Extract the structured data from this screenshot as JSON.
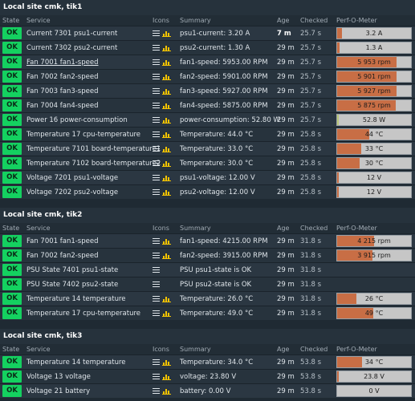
{
  "headers": {
    "state": "State",
    "service": "Service",
    "icons": "Icons",
    "summary": "Summary",
    "age": "Age",
    "checked": "Checked",
    "perf": "Perf-O-Meter"
  },
  "sites": [
    {
      "title": "Local site cmk, tik1",
      "rows": [
        {
          "state": "OK",
          "service": "Current 7301 psu1-current",
          "graph": true,
          "summary": "psu1-current: 3.20 A",
          "age": "7 m",
          "age_bold": true,
          "checked": "25.7 s",
          "perf_label": "3.2 A",
          "perf_fill": 0.06
        },
        {
          "state": "OK",
          "service": "Current 7302 psu2-current",
          "graph": true,
          "summary": "psu2-current: 1.30 A",
          "age": "29 m",
          "checked": "25.7 s",
          "perf_label": "1.3 A",
          "perf_fill": 0.03
        },
        {
          "state": "OK",
          "service": "Fan 7001 fan1-speed",
          "link": true,
          "graph": true,
          "summary": "fan1-speed: 5953.00 RPM",
          "age": "29 m",
          "checked": "25.7 s",
          "perf_label": "5 953 rpm",
          "perf_fill": 0.8
        },
        {
          "state": "OK",
          "service": "Fan 7002 fan2-speed",
          "graph": true,
          "summary": "fan2-speed: 5901.00 RPM",
          "age": "29 m",
          "checked": "25.7 s",
          "perf_label": "5 901 rpm",
          "perf_fill": 0.8
        },
        {
          "state": "OK",
          "service": "Fan 7003 fan3-speed",
          "graph": true,
          "summary": "fan3-speed: 5927.00 RPM",
          "age": "29 m",
          "checked": "25.7 s",
          "perf_label": "5 927 rpm",
          "perf_fill": 0.8
        },
        {
          "state": "OK",
          "service": "Fan 7004 fan4-speed",
          "graph": true,
          "summary": "fan4-speed: 5875.00 RPM",
          "age": "29 m",
          "checked": "25.7 s",
          "perf_label": "5 875 rpm",
          "perf_fill": 0.79
        },
        {
          "state": "OK",
          "service": "Power 16 power-consumption",
          "graph": true,
          "summary": "power-consumption: 52.80 W",
          "age": "29 m",
          "checked": "25.7 s",
          "perf_label": "52.8 W",
          "perf_fill": 0.02,
          "perf_green": true
        },
        {
          "state": "OK",
          "service": "Temperature 17 cpu-temperature",
          "graph": true,
          "summary": "Temperature: 44.0 °C",
          "age": "29 m",
          "checked": "25.8 s",
          "perf_label": "44 °C",
          "perf_fill": 0.44
        },
        {
          "state": "OK",
          "service": "Temperature 7101 board-temperature1",
          "graph": true,
          "summary": "Temperature: 33.0 °C",
          "age": "29 m",
          "checked": "25.8 s",
          "perf_label": "33 °C",
          "perf_fill": 0.33
        },
        {
          "state": "OK",
          "service": "Temperature 7102 board-temperature2",
          "graph": true,
          "summary": "Temperature: 30.0 °C",
          "age": "29 m",
          "checked": "25.8 s",
          "perf_label": "30 °C",
          "perf_fill": 0.3
        },
        {
          "state": "OK",
          "service": "Voltage 7201 psu1-voltage",
          "graph": true,
          "summary": "psu1-voltage: 12.00 V",
          "age": "29 m",
          "checked": "25.8 s",
          "perf_label": "12 V",
          "perf_fill": 0.02
        },
        {
          "state": "OK",
          "service": "Voltage 7202 psu2-voltage",
          "graph": true,
          "summary": "psu2-voltage: 12.00 V",
          "age": "29 m",
          "checked": "25.8 s",
          "perf_label": "12 V",
          "perf_fill": 0.02
        }
      ]
    },
    {
      "title": "Local site cmk, tik2",
      "rows": [
        {
          "state": "OK",
          "service": "Fan 7001 fan1-speed",
          "graph": true,
          "summary": "fan1-speed: 4215.00 RPM",
          "age": "29 m",
          "checked": "31.8 s",
          "perf_label": "4 215 rpm",
          "perf_fill": 0.5
        },
        {
          "state": "OK",
          "service": "Fan 7002 fan2-speed",
          "graph": true,
          "summary": "fan2-speed: 3915.00 RPM",
          "age": "29 m",
          "checked": "31.8 s",
          "perf_label": "3 915 rpm",
          "perf_fill": 0.48
        },
        {
          "state": "OK",
          "service": "PSU State 7401 psu1-state",
          "graph": false,
          "summary": "PSU psu1-state is OK",
          "age": "29 m",
          "checked": "31.8 s"
        },
        {
          "state": "OK",
          "service": "PSU State 7402 psu2-state",
          "graph": false,
          "summary": "PSU psu2-state is OK",
          "age": "29 m",
          "checked": "31.8 s"
        },
        {
          "state": "OK",
          "service": "Temperature 14 temperature",
          "graph": true,
          "summary": "Temperature: 26.0 °C",
          "age": "29 m",
          "checked": "31.8 s",
          "perf_label": "26 °C",
          "perf_fill": 0.26
        },
        {
          "state": "OK",
          "service": "Temperature 17 cpu-temperature",
          "graph": true,
          "summary": "Temperature: 49.0 °C",
          "age": "29 m",
          "checked": "31.8 s",
          "perf_label": "49 °C",
          "perf_fill": 0.49
        }
      ]
    },
    {
      "title": "Local site cmk, tik3",
      "rows": [
        {
          "state": "OK",
          "service": "Temperature 14 temperature",
          "graph": true,
          "summary": "Temperature: 34.0 °C",
          "age": "29 m",
          "checked": "53.8 s",
          "perf_label": "34 °C",
          "perf_fill": 0.34
        },
        {
          "state": "OK",
          "service": "Voltage 13 voltage",
          "graph": true,
          "summary": "voltage: 23.80 V",
          "age": "29 m",
          "checked": "53.8 s",
          "perf_label": "23.8 V",
          "perf_fill": 0.02
        },
        {
          "state": "OK",
          "service": "Voltage 21 battery",
          "graph": true,
          "summary": "battery: 0.00 V",
          "age": "29 m",
          "checked": "53.8 s",
          "perf_label": "0 V",
          "perf_fill": 0
        }
      ]
    }
  ]
}
